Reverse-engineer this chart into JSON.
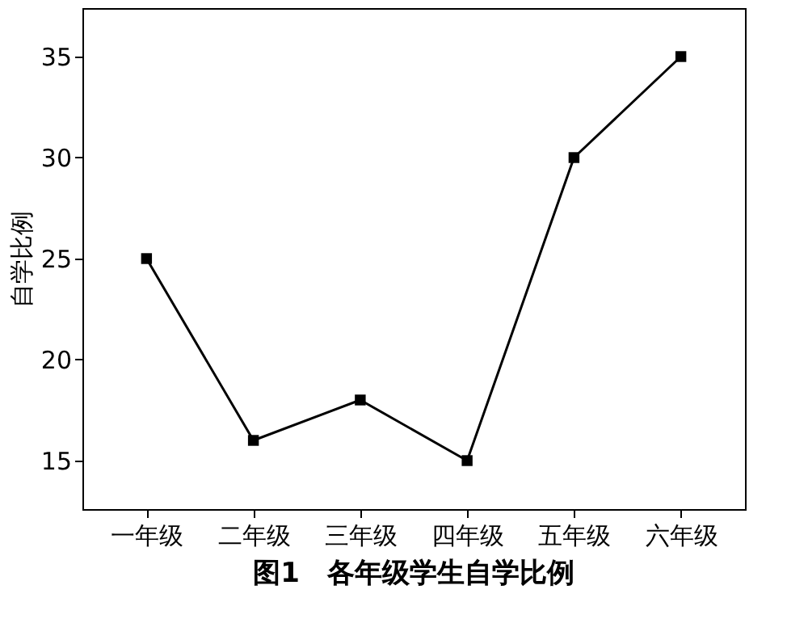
{
  "chart_data": {
    "type": "line",
    "title": "图1　各年级学生自学比例",
    "ylabel": "自学比例",
    "categories": [
      "一年级",
      "二年级",
      "三年级",
      "四年级",
      "五年级",
      "六年级"
    ],
    "series": [
      {
        "color": "#000000",
        "values": [
          25,
          16,
          18,
          15,
          30,
          35
        ]
      }
    ],
    "ylim": [
      12.6,
      37.4
    ],
    "yticks": [
      15,
      20,
      25,
      30,
      35
    ],
    "grid": false,
    "marker": "square",
    "line_style": "solid"
  }
}
